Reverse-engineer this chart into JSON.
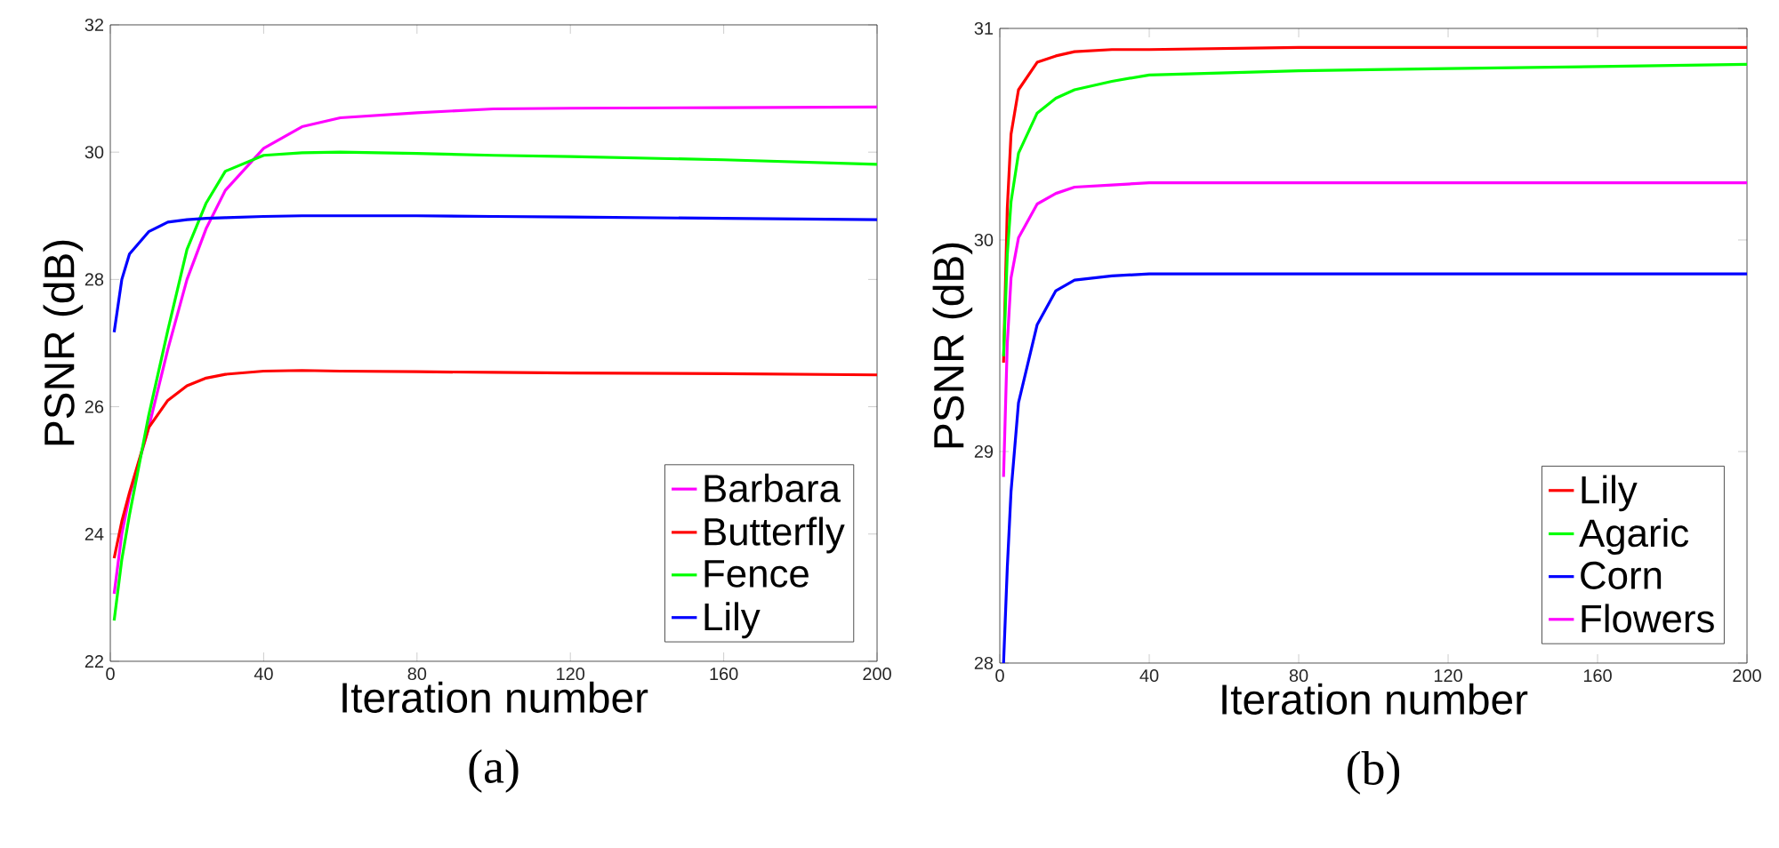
{
  "chart_data": [
    {
      "type": "line",
      "title": "(a)",
      "xlabel": "Iteration number",
      "ylabel": "PSNR (dB)",
      "xlim": [
        0,
        200
      ],
      "ylim": [
        22,
        32
      ],
      "xticks": [
        0,
        40,
        80,
        120,
        160,
        200
      ],
      "yticks": [
        22,
        24,
        26,
        28,
        30,
        32
      ],
      "legend": "bottom right",
      "x": [
        1,
        3,
        5,
        10,
        15,
        20,
        25,
        30,
        40,
        50,
        60,
        80,
        100,
        120,
        160,
        200
      ],
      "series": [
        {
          "name": "Barbara",
          "color": "#ff00ff",
          "values": [
            23.06,
            24.0,
            24.6,
            25.67,
            26.9,
            28.0,
            28.8,
            29.4,
            30.06,
            30.4,
            30.54,
            30.62,
            30.68,
            30.69,
            30.7,
            30.71
          ]
        },
        {
          "name": "Butterfly",
          "color": "#ff0000",
          "values": [
            23.62,
            24.2,
            24.65,
            25.67,
            26.1,
            26.33,
            26.45,
            26.51,
            26.56,
            26.57,
            26.56,
            26.55,
            26.54,
            26.53,
            26.52,
            26.5
          ]
        },
        {
          "name": "Fence",
          "color": "#00ff00",
          "values": [
            22.64,
            23.6,
            24.3,
            25.86,
            27.2,
            28.47,
            29.2,
            29.7,
            29.95,
            29.99,
            30.0,
            29.98,
            29.95,
            29.93,
            29.88,
            29.81
          ]
        },
        {
          "name": "Lily",
          "color": "#0000ff",
          "values": [
            27.17,
            28.0,
            28.4,
            28.75,
            28.9,
            28.94,
            28.96,
            28.97,
            28.99,
            29.0,
            29.0,
            29.0,
            28.99,
            28.98,
            28.96,
            28.94
          ]
        }
      ]
    },
    {
      "type": "line",
      "title": "(b)",
      "xlabel": "Iteration number",
      "ylabel": "PSNR (dB)",
      "xlim": [
        0,
        200
      ],
      "ylim": [
        28,
        31
      ],
      "xticks": [
        0,
        40,
        80,
        120,
        160,
        200
      ],
      "yticks": [
        28,
        29,
        30,
        31
      ],
      "legend": "bottom right",
      "x": [
        1,
        2,
        3,
        5,
        10,
        15,
        20,
        30,
        40,
        80,
        120,
        160,
        200
      ],
      "series": [
        {
          "name": "Lily",
          "color": "#ff0000",
          "values": [
            29.42,
            30.15,
            30.5,
            30.71,
            30.84,
            30.87,
            30.89,
            30.9,
            30.9,
            30.91,
            30.91,
            30.91,
            30.91
          ]
        },
        {
          "name": "Agaric",
          "color": "#00ff00",
          "values": [
            29.45,
            29.93,
            30.18,
            30.41,
            30.6,
            30.67,
            30.71,
            30.75,
            30.78,
            30.8,
            30.81,
            30.82,
            30.83
          ]
        },
        {
          "name": "Corn",
          "color": "#0000ff",
          "values": [
            28.0,
            28.45,
            28.81,
            29.23,
            29.6,
            29.76,
            29.81,
            29.83,
            29.84,
            29.84,
            29.84,
            29.84,
            29.84
          ]
        },
        {
          "name": "Flowers",
          "color": "#ff00ff",
          "values": [
            28.88,
            29.51,
            29.82,
            30.01,
            30.17,
            30.22,
            30.25,
            30.26,
            30.27,
            30.27,
            30.27,
            30.27,
            30.27
          ]
        }
      ]
    }
  ]
}
